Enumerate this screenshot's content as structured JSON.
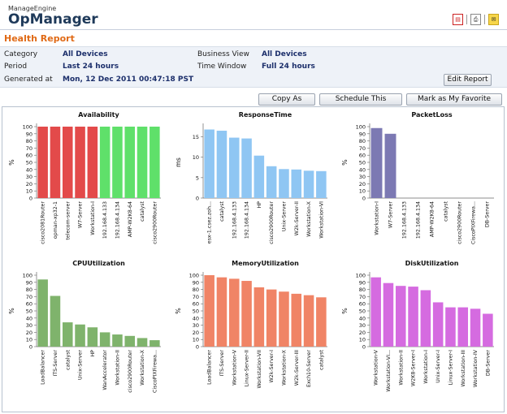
{
  "app": {
    "brand_sub": "ManageEngine",
    "brand_main": "OpManager"
  },
  "header": {
    "title": "Health Report"
  },
  "meta": {
    "category_label": "Category",
    "category_value": "All Devices",
    "period_label": "Period",
    "period_value": "Last 24 hours",
    "generated_label": "Generated at",
    "generated_value": "Mon, 12 Dec 2011 00:47:18 PST",
    "business_view_label": "Business View",
    "business_view_value": "All Devices",
    "time_window_label": "Time Window",
    "time_window_value": "Full 24 hours"
  },
  "buttons": {
    "edit_report": "Edit Report",
    "copy_as": "Copy As",
    "schedule": "Schedule This",
    "favorite": "Mark as My Favorite"
  },
  "icons": {
    "pdf": "pdf-icon",
    "print": "print-icon",
    "mail": "mail-icon"
  },
  "chart_data": [
    {
      "type": "bar",
      "title": "Availability",
      "ylabel": "%",
      "ylim": [
        0,
        100
      ],
      "yticks": [
        0,
        10,
        20,
        30,
        40,
        50,
        60,
        70,
        80,
        90,
        100
      ],
      "categories": [
        "cisco2081Router",
        "opman-xp32-1",
        "telecom-server",
        "W7-Server",
        "Workstation-I",
        "192.168.4.133",
        "192.168.4.134",
        "AMP-W2K8-64",
        "catalyst",
        "cisco2900Router"
      ],
      "values": [
        100,
        100,
        100,
        100,
        100,
        100,
        100,
        100,
        100,
        100
      ],
      "colors": [
        "#e34a4a",
        "#e34a4a",
        "#e34a4a",
        "#e34a4a",
        "#e34a4a",
        "#5fe06a",
        "#5fe06a",
        "#5fe06a",
        "#5fe06a",
        "#5fe06a"
      ]
    },
    {
      "type": "bar",
      "title": "ResponseTime",
      "ylabel": "ms",
      "ylim": [
        0,
        17.5
      ],
      "yticks": [
        0,
        5,
        10,
        15
      ],
      "categories": [
        "esx-1.csez.zoh...",
        "catalyst",
        "192.168.4.133",
        "192.168.4.134",
        "HP",
        "cisco2900Router",
        "Unix-Server",
        "W2k-Server-II",
        "Workstation-X",
        "Workstation-VI"
      ],
      "values": [
        16.8,
        16.5,
        14.8,
        14.6,
        10.4,
        7.8,
        7.1,
        7.0,
        6.7,
        6.6
      ],
      "colors": [
        "#8fc6f3"
      ]
    },
    {
      "type": "bar",
      "title": "PacketLoss",
      "ylabel": "%",
      "ylim": [
        0,
        100
      ],
      "yticks": [
        0,
        10,
        20,
        30,
        40,
        50,
        60,
        70,
        80,
        90,
        100
      ],
      "categories": [
        "Workstation-I",
        "W7-Server",
        "192.168.4.133",
        "192.168.4.134",
        "AMP-W2K8-64",
        "catalyst",
        "cisco2900Router",
        "CiscoPIXFirewa...",
        "DB-Server"
      ],
      "values": [
        98,
        90,
        0,
        0,
        0,
        0,
        0,
        0,
        0
      ],
      "colors": [
        "#7c79b3"
      ]
    },
    {
      "type": "bar",
      "title": "CPUUtilization",
      "ylabel": "%",
      "ylim": [
        0,
        100
      ],
      "yticks": [
        0,
        10,
        20,
        30,
        40,
        50,
        60,
        70,
        80,
        90,
        100
      ],
      "categories": [
        "LoadBalancer",
        "ITS-Server",
        "catalyst",
        "Unix-Server",
        "HP",
        "WanAccelerator",
        "Workstation-II",
        "cisco2900Router",
        "Workstation-X",
        "CiscoPIXFirewa..."
      ],
      "values": [
        94,
        71,
        34,
        31,
        27,
        20,
        17,
        15,
        12,
        9
      ],
      "colors": [
        "#7fb36c"
      ]
    },
    {
      "type": "bar",
      "title": "MemoryUtilization",
      "ylabel": "%",
      "ylim": [
        0,
        100
      ],
      "yticks": [
        0,
        10,
        20,
        30,
        40,
        50,
        60,
        70,
        80,
        90,
        100
      ],
      "categories": [
        "LoadBalancer",
        "ITS-Server",
        "Workstation-V",
        "Linux-Server-II",
        "Workstation-VII",
        "W2k-Server-I",
        "Workstation-X",
        "W2k-Server-III",
        "Exch10-Server",
        "catalyst"
      ],
      "values": [
        100,
        97,
        95,
        92,
        83,
        80,
        77,
        74,
        72,
        69
      ],
      "colors": [
        "#f08466"
      ]
    },
    {
      "type": "bar",
      "title": "DiskUtilization",
      "ylabel": "%",
      "ylim": [
        0,
        100
      ],
      "yticks": [
        0,
        10,
        20,
        30,
        40,
        50,
        60,
        70,
        80,
        90,
        100
      ],
      "categories": [
        "Workstation-V",
        "Workstation-VI...",
        "Workstation-II",
        "W2K8-Server-I",
        "Workstation-I",
        "Unix-Server-I",
        "Linux-Server-I",
        "Workstation-III",
        "Workstation-IV",
        "DB-Server"
      ],
      "values": [
        97,
        89,
        85,
        84,
        79,
        62,
        55,
        55,
        53,
        46
      ],
      "colors": [
        "#d56be0"
      ]
    }
  ]
}
